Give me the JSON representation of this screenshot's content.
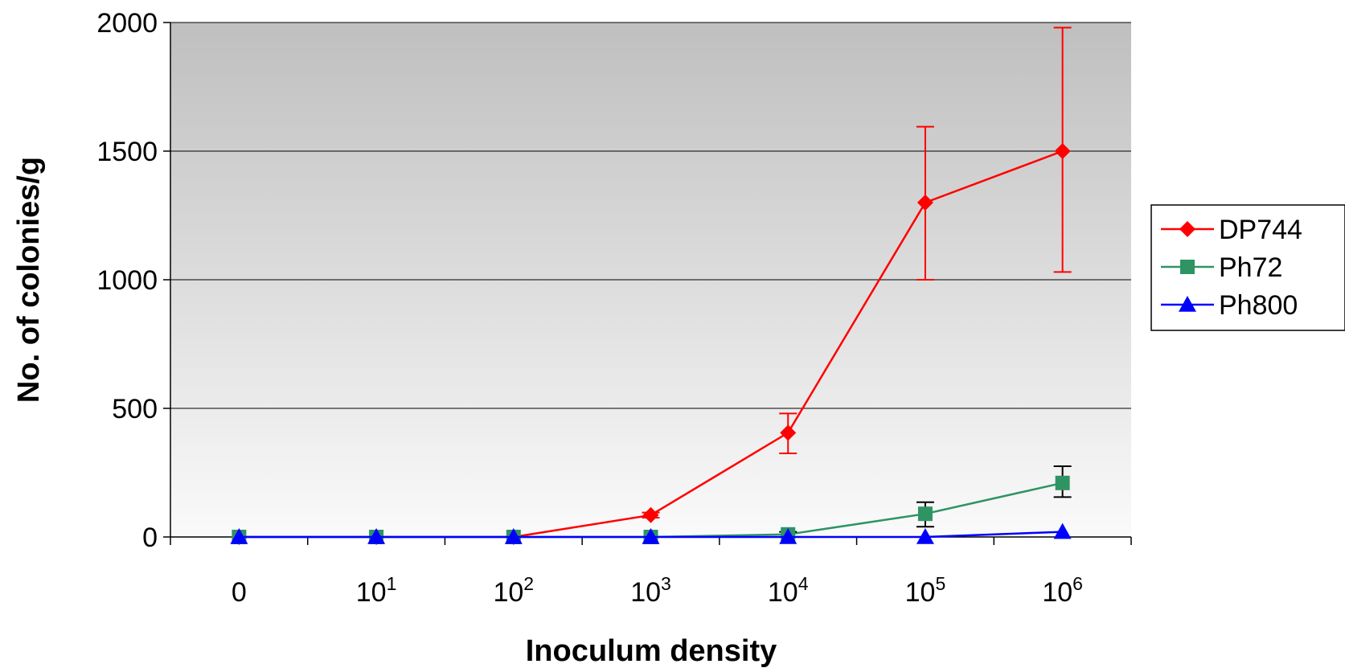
{
  "chart_data": {
    "type": "line",
    "title": "",
    "xlabel": "Inoculum density",
    "ylabel": "No. of colonies/g",
    "categories": [
      {
        "base": "0",
        "exp": ""
      },
      {
        "base": "10",
        "exp": "1"
      },
      {
        "base": "10",
        "exp": "2"
      },
      {
        "base": "10",
        "exp": "3"
      },
      {
        "base": "10",
        "exp": "4"
      },
      {
        "base": "10",
        "exp": "5"
      },
      {
        "base": "10",
        "exp": "6"
      }
    ],
    "ylim": [
      0,
      2000
    ],
    "yticks": [
      "0",
      "500",
      "1000",
      "1500",
      "2000"
    ],
    "ytick_values": [
      0,
      500,
      1000,
      1500,
      2000
    ],
    "grid": true,
    "legend_position": "right",
    "series": [
      {
        "name": "DP744",
        "color": "#ff0000",
        "marker": "diamond",
        "values": [
          0,
          0,
          0,
          85,
          405,
          1300,
          1500
        ],
        "err_low": [
          null,
          null,
          null,
          75,
          325,
          1000,
          1030
        ],
        "err_high": [
          null,
          null,
          null,
          95,
          480,
          1595,
          1980
        ],
        "err_color": "#ff0000"
      },
      {
        "name": "Ph72",
        "color": "#2e9463",
        "marker": "square",
        "values": [
          0,
          0,
          0,
          0,
          10,
          90,
          210
        ],
        "err_low": [
          null,
          null,
          null,
          null,
          0,
          40,
          155
        ],
        "err_high": [
          null,
          null,
          null,
          null,
          20,
          135,
          275
        ],
        "err_color": "#000000"
      },
      {
        "name": "Ph800",
        "color": "#0000ff",
        "marker": "triangle",
        "values": [
          0,
          0,
          0,
          0,
          0,
          0,
          20
        ],
        "err_low": [
          null,
          null,
          null,
          null,
          null,
          null,
          null
        ],
        "err_high": [
          null,
          null,
          null,
          null,
          null,
          null,
          null
        ],
        "err_color": "#000000"
      }
    ]
  }
}
